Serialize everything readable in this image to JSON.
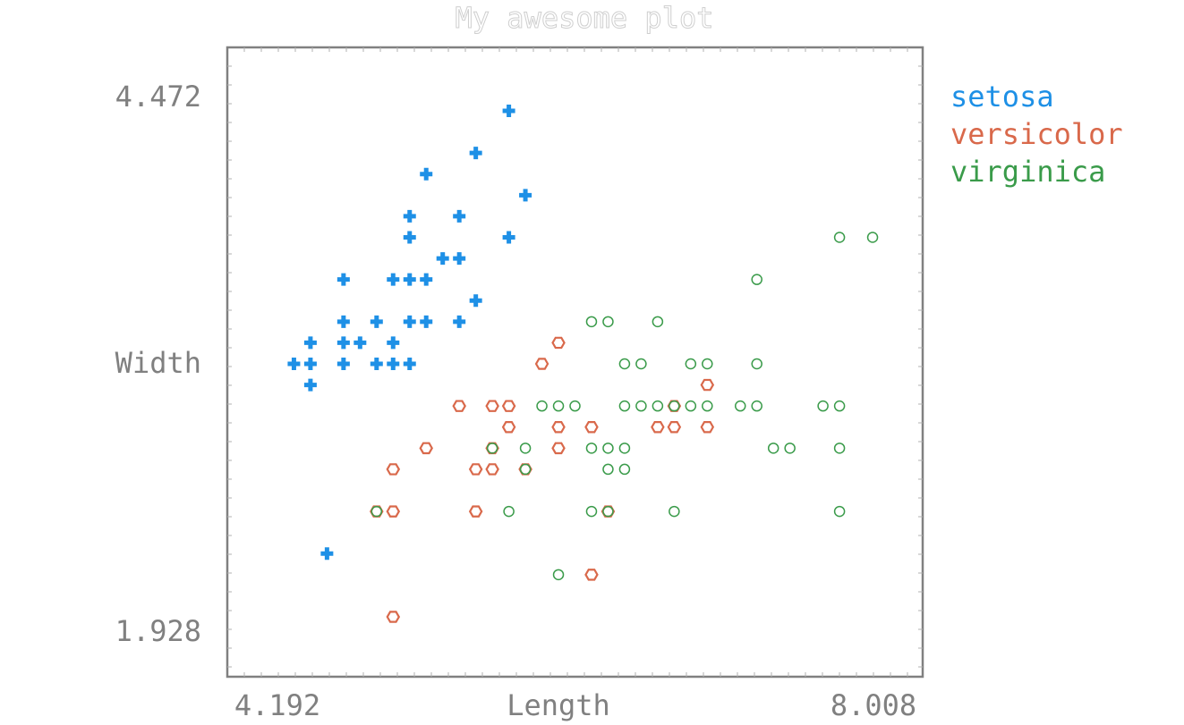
{
  "chart_data": {
    "type": "scatter",
    "title": "My awesome plot",
    "xlabel": "Length",
    "ylabel": "Width",
    "xlim": [
      4.192,
      8.008
    ],
    "ylim": [
      1.928,
      4.472
    ],
    "x_ticks": [
      "4.192",
      "8.008"
    ],
    "y_ticks": [
      "4.472",
      "1.928"
    ],
    "grid": false,
    "legend_position": "top-right",
    "series": [
      {
        "name": "setosa",
        "color": "#1e90e6",
        "marker": "plus",
        "points": [
          [
            5.7,
            4.4
          ],
          [
            5.5,
            4.2
          ],
          [
            5.2,
            4.1
          ],
          [
            5.8,
            4.0
          ],
          [
            5.1,
            3.9
          ],
          [
            5.4,
            3.9
          ],
          [
            5.7,
            3.8
          ],
          [
            5.1,
            3.8
          ],
          [
            5.3,
            3.7
          ],
          [
            5.4,
            3.7
          ],
          [
            4.7,
            3.6
          ],
          [
            5.0,
            3.6
          ],
          [
            5.1,
            3.6
          ],
          [
            5.2,
            3.6
          ],
          [
            5.5,
            3.5
          ],
          [
            4.7,
            3.4
          ],
          [
            4.9,
            3.4
          ],
          [
            5.1,
            3.4
          ],
          [
            5.2,
            3.4
          ],
          [
            5.4,
            3.4
          ],
          [
            4.5,
            3.3
          ],
          [
            4.7,
            3.3
          ],
          [
            4.8,
            3.3
          ],
          [
            5.0,
            3.3
          ],
          [
            4.4,
            3.2
          ],
          [
            4.5,
            3.2
          ],
          [
            4.7,
            3.2
          ],
          [
            4.9,
            3.2
          ],
          [
            5.0,
            3.2
          ],
          [
            5.1,
            3.2
          ],
          [
            4.5,
            3.1
          ],
          [
            4.6,
            2.3
          ]
        ]
      },
      {
        "name": "versicolor",
        "color": "#d9694b",
        "marker": "hexagon",
        "points": [
          [
            6.0,
            3.3
          ],
          [
            5.9,
            3.2
          ],
          [
            6.9,
            3.1
          ],
          [
            5.4,
            3.0
          ],
          [
            5.6,
            3.0
          ],
          [
            5.7,
            3.0
          ],
          [
            6.7,
            3.0
          ],
          [
            5.7,
            2.9
          ],
          [
            6.0,
            2.9
          ],
          [
            6.2,
            2.9
          ],
          [
            6.6,
            2.9
          ],
          [
            6.7,
            2.9
          ],
          [
            6.9,
            2.9
          ],
          [
            5.2,
            2.8
          ],
          [
            5.6,
            2.8
          ],
          [
            6.0,
            2.8
          ],
          [
            5.0,
            2.7
          ],
          [
            5.5,
            2.7
          ],
          [
            5.6,
            2.7
          ],
          [
            5.8,
            2.7
          ],
          [
            4.9,
            2.5
          ],
          [
            5.0,
            2.5
          ],
          [
            5.5,
            2.5
          ],
          [
            6.3,
            2.5
          ],
          [
            6.2,
            2.2
          ],
          [
            5.0,
            2.0
          ]
        ]
      },
      {
        "name": "virginica",
        "color": "#3a9b4a",
        "marker": "circle",
        "points": [
          [
            7.9,
            3.8
          ],
          [
            7.7,
            3.8
          ],
          [
            7.2,
            3.6
          ],
          [
            6.3,
            3.4
          ],
          [
            6.2,
            3.4
          ],
          [
            6.6,
            3.4
          ],
          [
            6.4,
            3.2
          ],
          [
            6.5,
            3.2
          ],
          [
            6.8,
            3.2
          ],
          [
            6.9,
            3.2
          ],
          [
            7.2,
            3.2
          ],
          [
            5.9,
            3.0
          ],
          [
            6.0,
            3.0
          ],
          [
            6.1,
            3.0
          ],
          [
            6.4,
            3.0
          ],
          [
            6.5,
            3.0
          ],
          [
            6.6,
            3.0
          ],
          [
            6.7,
            3.0
          ],
          [
            6.8,
            3.0
          ],
          [
            6.9,
            3.0
          ],
          [
            7.1,
            3.0
          ],
          [
            7.2,
            3.0
          ],
          [
            7.6,
            3.0
          ],
          [
            7.7,
            3.0
          ],
          [
            5.6,
            2.8
          ],
          [
            5.8,
            2.8
          ],
          [
            6.2,
            2.8
          ],
          [
            6.3,
            2.8
          ],
          [
            6.4,
            2.8
          ],
          [
            7.3,
            2.8
          ],
          [
            7.4,
            2.8
          ],
          [
            7.7,
            2.8
          ],
          [
            5.8,
            2.7
          ],
          [
            6.3,
            2.7
          ],
          [
            6.4,
            2.7
          ],
          [
            4.9,
            2.5
          ],
          [
            5.7,
            2.5
          ],
          [
            6.2,
            2.5
          ],
          [
            6.3,
            2.5
          ],
          [
            6.7,
            2.5
          ],
          [
            7.7,
            2.5
          ],
          [
            6.0,
            2.2
          ]
        ]
      }
    ]
  }
}
